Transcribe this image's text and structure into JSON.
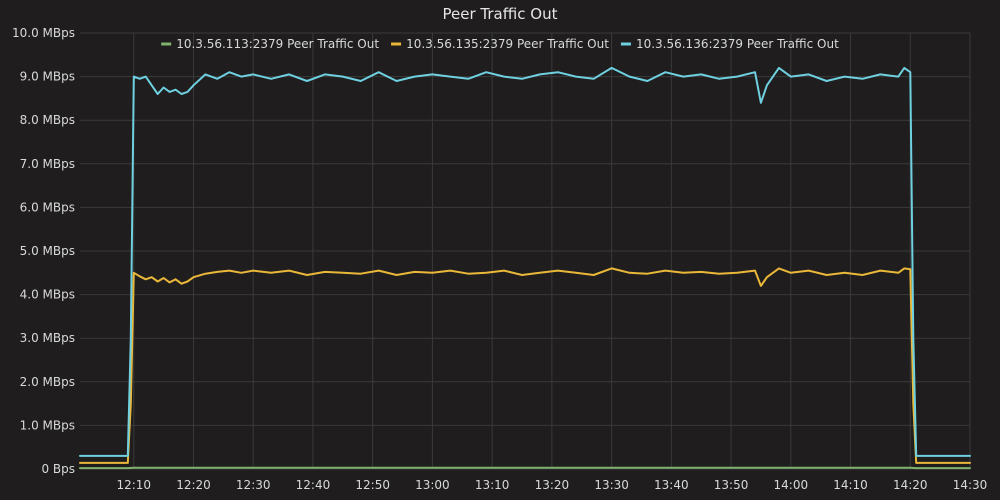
{
  "chart_data": {
    "type": "line",
    "title": "Peer Traffic Out",
    "xlabel": "",
    "ylabel": "",
    "grid": true,
    "legend_position": "top-center",
    "x_range": [
      "12:01",
      "14:30"
    ],
    "y_range": [
      0,
      10
    ],
    "y_unit": "MBps",
    "x_ticks": [
      "12:10",
      "12:20",
      "12:30",
      "12:40",
      "12:50",
      "13:00",
      "13:10",
      "13:20",
      "13:30",
      "13:40",
      "13:50",
      "14:00",
      "14:10",
      "14:20",
      "14:30"
    ],
    "y_ticks": [
      {
        "value": 0,
        "label": "0 Bps"
      },
      {
        "value": 1,
        "label": "1.0 MBps"
      },
      {
        "value": 2,
        "label": "2.0 MBps"
      },
      {
        "value": 3,
        "label": "3.0 MBps"
      },
      {
        "value": 4,
        "label": "4.0 MBps"
      },
      {
        "value": 5,
        "label": "5.0 MBps"
      },
      {
        "value": 6,
        "label": "6.0 MBps"
      },
      {
        "value": 7,
        "label": "7.0 MBps"
      },
      {
        "value": 8,
        "label": "8.0 MBps"
      },
      {
        "value": 9,
        "label": "9.0 MBps"
      },
      {
        "value": 10,
        "label": "10.0 MBps"
      }
    ],
    "series": [
      {
        "name": "10.3.56.113:2379 Peer Traffic Out",
        "color": "#7eb26d",
        "x": [
          "12:01",
          "12:05",
          "12:09",
          "12:10",
          "12:20",
          "12:30",
          "12:40",
          "12:50",
          "13:00",
          "13:10",
          "13:20",
          "13:30",
          "13:40",
          "13:50",
          "14:00",
          "14:10",
          "14:20",
          "14:21",
          "14:25",
          "14:30"
        ],
        "values": [
          0.02,
          0.02,
          0.02,
          0.03,
          0.03,
          0.03,
          0.03,
          0.03,
          0.03,
          0.03,
          0.03,
          0.03,
          0.03,
          0.03,
          0.03,
          0.03,
          0.03,
          0.02,
          0.02,
          0.02
        ]
      },
      {
        "name": "10.3.56.135:2379 Peer Traffic Out",
        "color": "#eab839",
        "x": [
          "12:01",
          "12:05",
          "12:09",
          "12:09.5",
          "12:10",
          "12:11",
          "12:12",
          "12:13",
          "12:14",
          "12:15",
          "12:16",
          "12:17",
          "12:18",
          "12:19",
          "12:20",
          "12:22",
          "12:24",
          "12:26",
          "12:28",
          "12:30",
          "12:33",
          "12:36",
          "12:39",
          "12:42",
          "12:45",
          "12:48",
          "12:51",
          "12:54",
          "12:57",
          "13:00",
          "13:03",
          "13:06",
          "13:09",
          "13:12",
          "13:15",
          "13:18",
          "13:21",
          "13:24",
          "13:27",
          "13:30",
          "13:33",
          "13:36",
          "13:39",
          "13:42",
          "13:45",
          "13:48",
          "13:51",
          "13:54",
          "13:55",
          "13:56",
          "13:58",
          "14:00",
          "14:03",
          "14:06",
          "14:09",
          "14:12",
          "14:15",
          "14:18",
          "14:19",
          "14:20",
          "14:20.5",
          "14:21",
          "14:25",
          "14:30"
        ],
        "values": [
          0.14,
          0.14,
          0.14,
          1.5,
          4.5,
          4.42,
          4.35,
          4.4,
          4.3,
          4.38,
          4.28,
          4.35,
          4.25,
          4.3,
          4.4,
          4.48,
          4.52,
          4.55,
          4.5,
          4.55,
          4.5,
          4.55,
          4.45,
          4.52,
          4.5,
          4.48,
          4.55,
          4.45,
          4.52,
          4.5,
          4.55,
          4.48,
          4.5,
          4.55,
          4.45,
          4.5,
          4.55,
          4.5,
          4.45,
          4.6,
          4.5,
          4.48,
          4.55,
          4.5,
          4.52,
          4.48,
          4.5,
          4.55,
          4.2,
          4.4,
          4.6,
          4.5,
          4.55,
          4.45,
          4.5,
          4.45,
          4.55,
          4.5,
          4.6,
          4.58,
          1.5,
          0.14,
          0.14,
          0.14
        ]
      },
      {
        "name": "10.3.56.136:2379 Peer Traffic Out",
        "color": "#6ed0e0",
        "x": [
          "12:01",
          "12:05",
          "12:09",
          "12:09.5",
          "12:10",
          "12:11",
          "12:12",
          "12:13",
          "12:14",
          "12:15",
          "12:16",
          "12:17",
          "12:18",
          "12:19",
          "12:20",
          "12:22",
          "12:24",
          "12:26",
          "12:28",
          "12:30",
          "12:33",
          "12:36",
          "12:39",
          "12:42",
          "12:45",
          "12:48",
          "12:51",
          "12:54",
          "12:57",
          "13:00",
          "13:03",
          "13:06",
          "13:09",
          "13:12",
          "13:15",
          "13:18",
          "13:21",
          "13:24",
          "13:27",
          "13:30",
          "13:33",
          "13:36",
          "13:39",
          "13:42",
          "13:45",
          "13:48",
          "13:51",
          "13:54",
          "13:55",
          "13:56",
          "13:58",
          "14:00",
          "14:03",
          "14:06",
          "14:09",
          "14:12",
          "14:15",
          "14:18",
          "14:19",
          "14:20",
          "14:20.5",
          "14:21",
          "14:25",
          "14:30"
        ],
        "values": [
          0.3,
          0.3,
          0.3,
          3.0,
          9.0,
          8.95,
          9.0,
          8.8,
          8.6,
          8.75,
          8.65,
          8.7,
          8.6,
          8.65,
          8.8,
          9.05,
          8.95,
          9.1,
          9.0,
          9.05,
          8.95,
          9.05,
          8.9,
          9.05,
          9.0,
          8.9,
          9.1,
          8.9,
          9.0,
          9.05,
          9.0,
          8.95,
          9.1,
          9.0,
          8.95,
          9.05,
          9.1,
          9.0,
          8.95,
          9.2,
          9.0,
          8.9,
          9.1,
          9.0,
          9.05,
          8.95,
          9.0,
          9.1,
          8.4,
          8.8,
          9.2,
          9.0,
          9.05,
          8.9,
          9.0,
          8.95,
          9.05,
          9.0,
          9.2,
          9.1,
          3.0,
          0.3,
          0.3,
          0.3
        ]
      }
    ]
  }
}
